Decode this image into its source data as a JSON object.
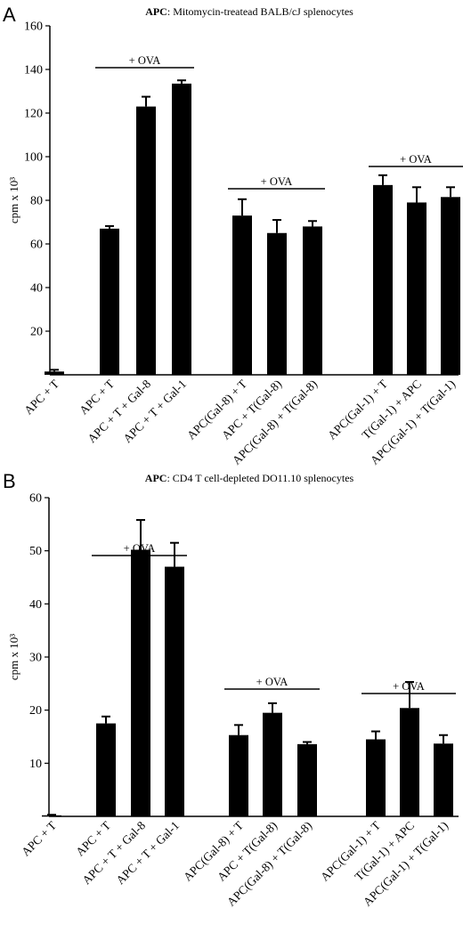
{
  "chart_data": [
    {
      "panel": "A",
      "type": "bar",
      "title_bold": "APC",
      "title_rest": ": Mitomycin-treatead BALB/cJ splenocytes",
      "ylabel": "cpm x 10³",
      "ylim": [
        0,
        160
      ],
      "yticks": [
        "20",
        "40",
        "60",
        "80",
        "100",
        "120",
        "140",
        "160"
      ],
      "grid": false,
      "categories": [
        "APC + T",
        "APC + T",
        "APC + T + Gal-8",
        "APC + T + Gal-1",
        "APC(Gal-8) + T",
        "APC + T(Gal-8)",
        "APC(Gal-8) + T(Gal-8)",
        "APC(Gal-1) + T",
        "T(Gal-1) + APC",
        "APC(Gal-1) + T(Gal-1)"
      ],
      "values": [
        1.5,
        67,
        123,
        133.5,
        73,
        65,
        68,
        87,
        79,
        81.5
      ],
      "errors": [
        0.8,
        1.2,
        4.5,
        1.5,
        7.5,
        6,
        2.5,
        4.5,
        7,
        4.5
      ],
      "groups": [
        {
          "label": "+ OVA",
          "from": 1,
          "to": 3
        },
        {
          "label": "+ OVA",
          "from": 4,
          "to": 6
        },
        {
          "label": "+ OVA",
          "from": 7,
          "to": 9
        }
      ]
    },
    {
      "panel": "B",
      "type": "bar",
      "title_bold": "APC",
      "title_rest": ": CD4 T cell-depleted DO11.10 splenocytes",
      "ylabel": "cpm x 10³",
      "ylim": [
        0,
        60
      ],
      "yticks": [
        "10",
        "20",
        "30",
        "40",
        "50",
        "60"
      ],
      "grid": false,
      "categories": [
        "APC + T",
        "APC + T",
        "APC + T + Gal-8",
        "APC + T + Gal-1",
        "APC(Gal-8) + T",
        "APC + T(Gal-8)",
        "APC(Gal-8) + T(Gal-8)",
        "APC(Gal-1) + T",
        "T(Gal-1) + APC",
        "APC(Gal-1) + T(Gal-1)"
      ],
      "values": [
        0.2,
        17.5,
        50.2,
        47,
        15.3,
        19.5,
        13.6,
        14.5,
        20.4,
        13.7
      ],
      "errors": [
        0.1,
        1.3,
        5.6,
        4.5,
        1.9,
        1.8,
        0.4,
        1.5,
        4.9,
        1.6
      ],
      "groups": [
        {
          "label": "+ OVA",
          "from": 1,
          "to": 3
        },
        {
          "label": "+ OVA",
          "from": 4,
          "to": 6
        },
        {
          "label": "+ OVA",
          "from": 7,
          "to": 9
        }
      ]
    }
  ]
}
